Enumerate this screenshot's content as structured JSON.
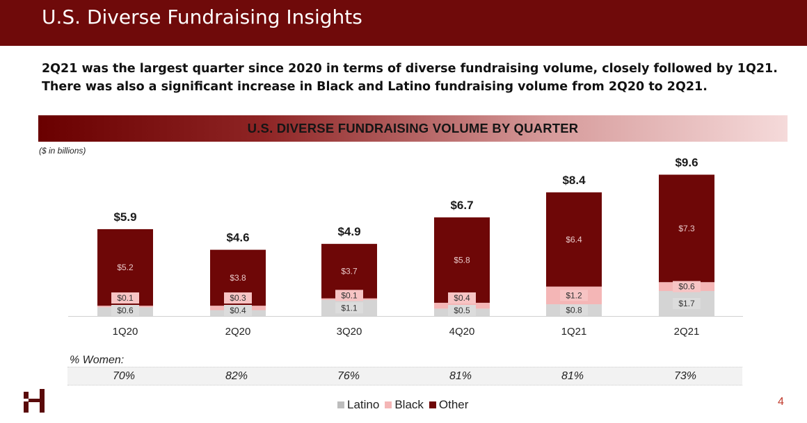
{
  "header": {
    "title": "U.S. Diverse Fundraising Insights"
  },
  "subtitle": "2Q21 was the largest quarter since 2020 in terms of diverse fundraising volume, closely followed by 1Q21. There was also a significant increase in Black and Latino fundraising volume from 2Q20 to 2Q21.",
  "chart_data": {
    "type": "bar",
    "stacked": true,
    "title": "U.S. DIVERSE FUNDRAISING VOLUME BY QUARTER",
    "units_note": "($ in billions)",
    "categories": [
      "1Q20",
      "2Q20",
      "3Q20",
      "4Q20",
      "1Q21",
      "2Q21"
    ],
    "series": [
      {
        "name": "Latino",
        "color": "#d4d4d4",
        "values": [
          0.6,
          0.4,
          1.1,
          0.5,
          0.8,
          1.7
        ],
        "labels": [
          "$0.6",
          "$0.4",
          "$1.1",
          "$0.5",
          "$0.8",
          "$1.7"
        ]
      },
      {
        "name": "Black",
        "color": "#f4b6b6",
        "values": [
          0.1,
          0.3,
          0.1,
          0.4,
          1.2,
          0.6
        ],
        "labels": [
          "$0.1",
          "$0.3",
          "$0.1",
          "$0.4",
          "$1.2",
          "$0.6"
        ]
      },
      {
        "name": "Other",
        "color": "#6e0707",
        "values": [
          5.2,
          3.8,
          3.7,
          5.8,
          6.4,
          7.3
        ],
        "labels": [
          "$5.2",
          "$3.8",
          "$3.7",
          "$5.8",
          "$6.4",
          "$7.3"
        ]
      }
    ],
    "totals": [
      5.9,
      4.6,
      4.9,
      6.7,
      8.4,
      9.6
    ],
    "total_labels": [
      "$5.9",
      "$4.6",
      "$4.9",
      "$6.7",
      "$8.4",
      "$9.6"
    ],
    "ylim": [
      0,
      10
    ],
    "grid": false,
    "legend": "bottom"
  },
  "women": {
    "label": "% Women:",
    "values": [
      "70%",
      "82%",
      "76%",
      "81%",
      "81%",
      "73%"
    ]
  },
  "legend": [
    "Latino",
    "Black",
    "Other"
  ],
  "page_number": "4"
}
